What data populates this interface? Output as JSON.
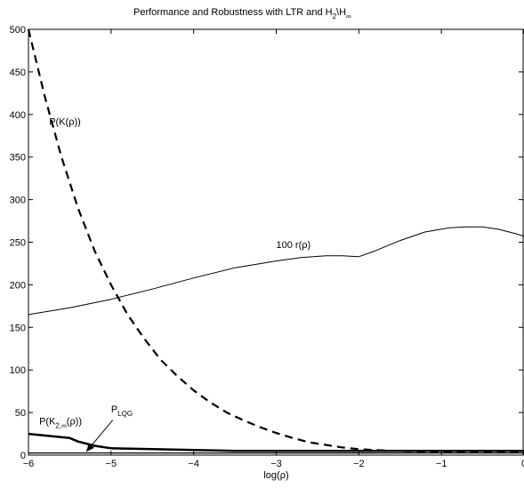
{
  "chart_data": {
    "type": "line",
    "title": "Performance  and Robustness with LTR and H",
    "title_sub2": "2",
    "title_sep": "\\H",
    "title_subinf": "∞",
    "xlabel": "log(ρ)",
    "ylabel": "",
    "xlim": [
      -6,
      0
    ],
    "ylim": [
      0,
      500
    ],
    "xticks": [
      -6,
      -5,
      -4,
      -3,
      -2,
      -1,
      0
    ],
    "yticks": [
      0,
      50,
      100,
      150,
      200,
      250,
      300,
      350,
      400,
      450,
      500
    ],
    "grid": false,
    "series": [
      {
        "style": "dashed",
        "x": [
          -6,
          -5.8,
          -5.6,
          -5.4,
          -5.2,
          -5.0,
          -4.8,
          -4.6,
          -4.4,
          -4.2,
          -4.0,
          -3.8,
          -3.6,
          -3.4,
          -3.2,
          -3.0,
          -2.8,
          -2.6,
          -2.4,
          -2.2,
          -2.0,
          -1.8,
          -1.6,
          -1.4,
          -1.2,
          -1.0,
          -0.8,
          -0.6,
          -0.4,
          -0.2,
          0
        ],
        "y": [
          500,
          420,
          350,
          290,
          240,
          200,
          165,
          137,
          112,
          93,
          76,
          62,
          50,
          41,
          33,
          26,
          20,
          15,
          12,
          9,
          7,
          6,
          5,
          4.6,
          4.3,
          4.1,
          4,
          4,
          4,
          4,
          4
        ]
      },
      {
        "style": "solid-thin",
        "x": [
          -6,
          -5.5,
          -5.0,
          -4.5,
          -4.0,
          -3.5,
          -3.0,
          -2.7,
          -2.4,
          -2.2,
          -2.0,
          -1.8,
          -1.5,
          -1.2,
          -0.9,
          -0.7,
          -0.5,
          -0.3,
          -0.1,
          0
        ],
        "y": [
          165,
          173,
          183,
          195,
          208,
          220,
          228,
          232,
          234,
          234,
          233,
          240,
          252,
          262,
          267,
          268,
          268,
          265,
          260,
          257
        ]
      },
      {
        "style": "solid-thick",
        "x": [
          -6,
          -5.5,
          -5.4,
          -5.2,
          -5.0,
          -4.5,
          -4.0,
          -3.5,
          -3.0,
          -2.0,
          -1.0,
          0
        ],
        "y": [
          25,
          20,
          16,
          11,
          8,
          7,
          6,
          5,
          5,
          5,
          5,
          5
        ]
      },
      {
        "style": "flat-lqg",
        "x": [
          -6,
          0
        ],
        "y": [
          2.5,
          2.5
        ]
      }
    ],
    "annotations": {
      "pk": "P(K(ρ))",
      "r": "100 r(ρ)",
      "lqg_main": "P",
      "lqg_sub": "LQG",
      "pk2_main": "P(K",
      "pk2_sub": "2,∞",
      "pk2_tail": "(ρ))"
    }
  }
}
